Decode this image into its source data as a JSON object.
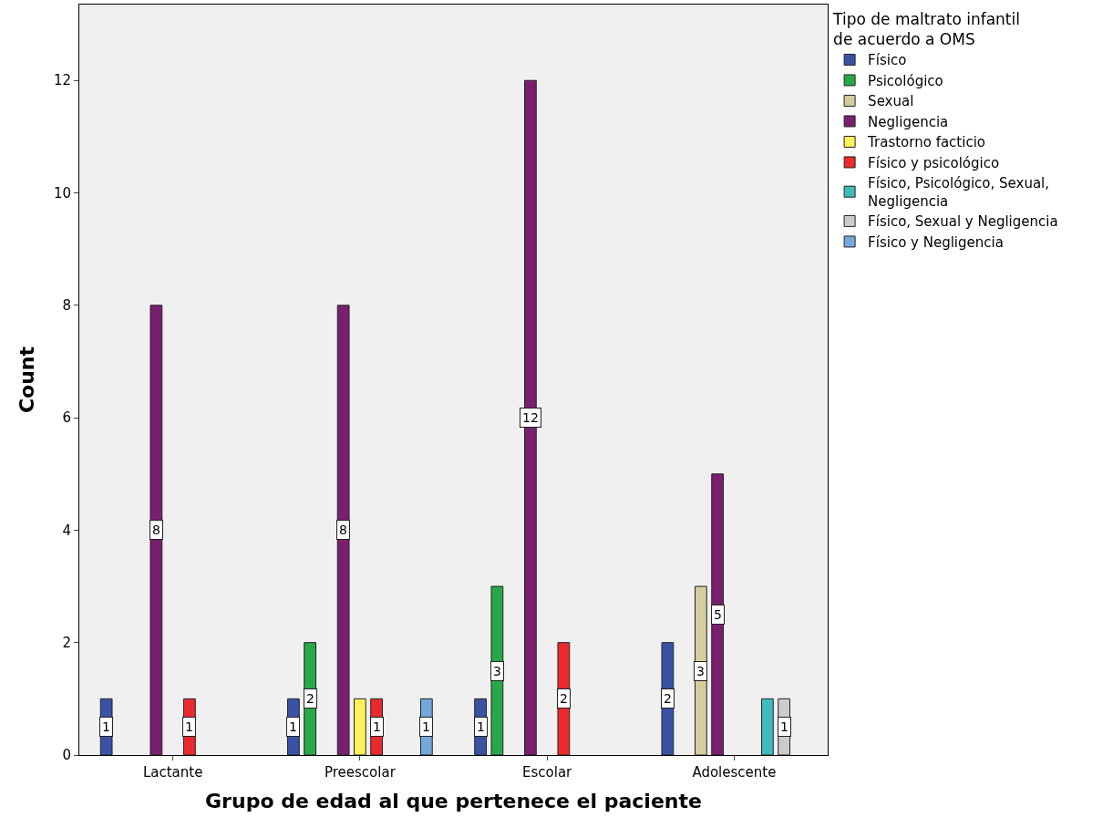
{
  "chart_data": {
    "type": "bar",
    "xlabel": "Grupo de edad al que pertenece el paciente",
    "ylabel": "Count",
    "legend_title": "Tipo de maltrato infantil\nde acuerdo a OMS",
    "categories": [
      "Lactante",
      "Preescolar",
      "Escolar",
      "Adolescente"
    ],
    "ylim": [
      0,
      13.35
    ],
    "yticks": [
      0,
      2,
      4,
      6,
      8,
      10,
      12
    ],
    "grid": false,
    "legend": "top right",
    "series": [
      {
        "name": "Físico",
        "color": "#3a52a4",
        "values": [
          1,
          1,
          1,
          2
        ],
        "value_labels": [
          "1",
          "1",
          "1",
          "2"
        ]
      },
      {
        "name": "Psicológico",
        "color": "#28a84a",
        "values": [
          null,
          2,
          3,
          null
        ],
        "value_labels": [
          null,
          "2",
          "3",
          null
        ]
      },
      {
        "name": "Sexual",
        "color": "#d5cd9c",
        "values": [
          null,
          null,
          null,
          3
        ],
        "value_labels": [
          null,
          null,
          null,
          "3"
        ]
      },
      {
        "name": "Negligencia",
        "color": "#7a1f70",
        "values": [
          8,
          8,
          12,
          5
        ],
        "value_labels": [
          "8",
          "8",
          "12",
          "5"
        ]
      },
      {
        "name": "Trastorno facticio",
        "color": "#fbf159",
        "values": [
          null,
          1,
          null,
          null
        ],
        "value_labels": [
          null,
          null,
          null,
          null
        ]
      },
      {
        "name": "Físico y psicológico",
        "color": "#ec2a2e",
        "values": [
          1,
          1,
          2,
          null
        ],
        "value_labels": [
          "1",
          "1",
          "2",
          null
        ]
      },
      {
        "name": "Físico, Psicológico, Sexual,\nNegligencia",
        "color": "#3ebcbd",
        "values": [
          null,
          null,
          null,
          1
        ],
        "value_labels": [
          null,
          null,
          null,
          null
        ]
      },
      {
        "name": "Físico, Sexual y Negligencia",
        "color": "#cbcbcb",
        "values": [
          null,
          null,
          null,
          1
        ],
        "value_labels": [
          null,
          null,
          null,
          "1"
        ]
      },
      {
        "name": "Físico y Negligencia",
        "color": "#74a8dc",
        "values": [
          null,
          1,
          null,
          null
        ],
        "value_labels": [
          null,
          "1",
          null,
          null
        ]
      }
    ]
  }
}
